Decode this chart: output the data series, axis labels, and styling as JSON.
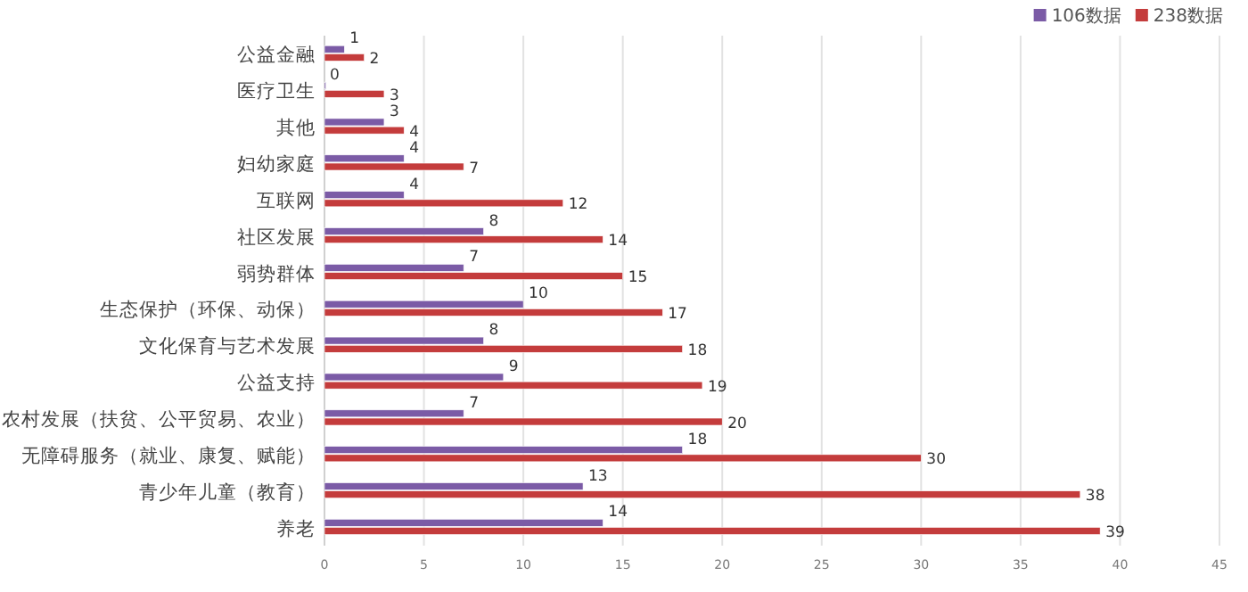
{
  "chart_data": {
    "type": "bar",
    "orientation": "horizontal",
    "categories": [
      "公益金融",
      "医疗卫生",
      "其他",
      "妇幼家庭",
      "互联网",
      "社区发展",
      "弱势群体",
      "生态保护（环保、动保）",
      "文化保育与艺术发展",
      "公益支持",
      "农村发展（扶贫、公平贸易、农业）",
      "无障碍服务（就业、康复、赋能）",
      "青少年儿童（教育）",
      "养老"
    ],
    "series": [
      {
        "name": "106数据",
        "color": "#7b5ba6",
        "values": [
          1,
          0,
          3,
          4,
          4,
          8,
          7,
          10,
          8,
          9,
          7,
          18,
          13,
          14
        ]
      },
      {
        "name": "238数据",
        "color": "#c43c3c",
        "values": [
          2,
          3,
          4,
          7,
          12,
          14,
          15,
          17,
          18,
          19,
          20,
          30,
          38,
          39
        ]
      }
    ],
    "xlim": [
      0,
      45
    ],
    "xticks": [
      0,
      5,
      10,
      15,
      20,
      25,
      30,
      35,
      40,
      45
    ],
    "grid": "x",
    "legend": "top right",
    "data_labels": true
  }
}
